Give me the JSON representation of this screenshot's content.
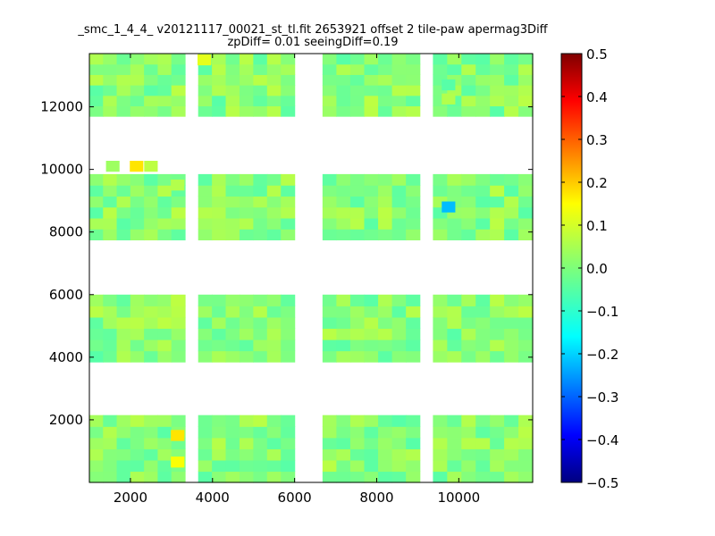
{
  "chart_data": {
    "type": "heatmap",
    "title": "_smc_1_4_4_ v20121117_00021_st_tl.fit 2653921 offset 2 tile-paw apermag3Diff",
    "subtitle": "zpDiff= 0.01 seeingDiff=0.19",
    "xlabel": "",
    "ylabel": "",
    "xlim": [
      1000,
      11800
    ],
    "ylim": [
      0,
      13700
    ],
    "x_ticks": [
      "2000",
      "4000",
      "6000",
      "8000",
      "10000"
    ],
    "y_ticks": [
      "2000",
      "4000",
      "6000",
      "8000",
      "10000",
      "12000"
    ],
    "colorbar": {
      "range": [
        -0.5,
        0.5
      ],
      "colormap": "jet",
      "ticks": [
        "0.5",
        "0.4",
        "0.3",
        "0.2",
        "0.1",
        "0.0",
        "−0.1",
        "−0.2",
        "−0.3",
        "−0.4",
        "−0.5"
      ]
    },
    "columns": [
      {
        "x0": 1000,
        "x1": 3330
      },
      {
        "x0": 3650,
        "x1": 6000
      },
      {
        "x0": 6680,
        "x1": 9050
      },
      {
        "x0": 9370,
        "x1": 11800
      }
    ],
    "rows": [
      {
        "y0": 0,
        "y1": 2150
      },
      {
        "y0": 3850,
        "y1": 6000
      },
      {
        "y0": 7750,
        "y1": 9850
      },
      {
        "y0": 11700,
        "y1": 13700
      }
    ],
    "base_value": 0.01,
    "special_cells": [
      {
        "x": 1570,
        "y": 10100,
        "value": 0.03
      },
      {
        "x": 2150,
        "y": 10100,
        "value": 0.15
      },
      {
        "x": 2500,
        "y": 10100,
        "value": 0.06
      },
      {
        "x": 3150,
        "y": 1500,
        "value": 0.15
      },
      {
        "x": 3150,
        "y": 650,
        "value": 0.12
      },
      {
        "x": 9750,
        "y": 8800,
        "value": -0.19
      },
      {
        "x": 3800,
        "y": 13500,
        "value": 0.1
      },
      {
        "x": 3150,
        "y": 5800,
        "value": 0.06
      },
      {
        "x": 3150,
        "y": 9500,
        "value": 0.05
      },
      {
        "x": 9750,
        "y": 12700,
        "value": -0.04
      },
      {
        "x": 9750,
        "y": 12250,
        "value": 0.05
      }
    ]
  }
}
